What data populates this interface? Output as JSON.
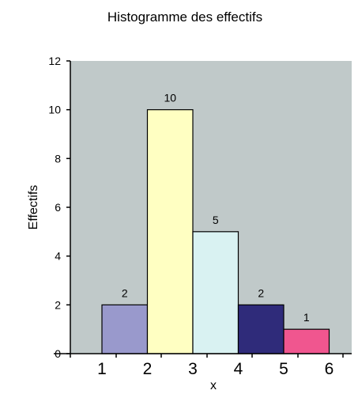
{
  "chart_data": {
    "type": "bar",
    "title": "Histogramme des effectifs",
    "xlabel": "x",
    "ylabel": "Effectifs",
    "ylim": [
      0,
      12
    ],
    "yticks": [
      0,
      2,
      4,
      6,
      8,
      10,
      12
    ],
    "x_edges": [
      "1",
      "2",
      "3",
      "4",
      "5",
      "6"
    ],
    "series": [
      {
        "bins": [
          [
            1,
            2
          ],
          [
            2,
            3
          ],
          [
            3,
            4
          ],
          [
            4,
            5
          ],
          [
            5,
            6
          ]
        ],
        "values": [
          2,
          10,
          5,
          2,
          1
        ],
        "colors": [
          "#9999cc",
          "#ffffc2",
          "#d9f2f2",
          "#2f2b7a",
          "#f0568f"
        ]
      }
    ],
    "plot_background": "#c0c9c9",
    "grid": false,
    "legend": "none"
  }
}
